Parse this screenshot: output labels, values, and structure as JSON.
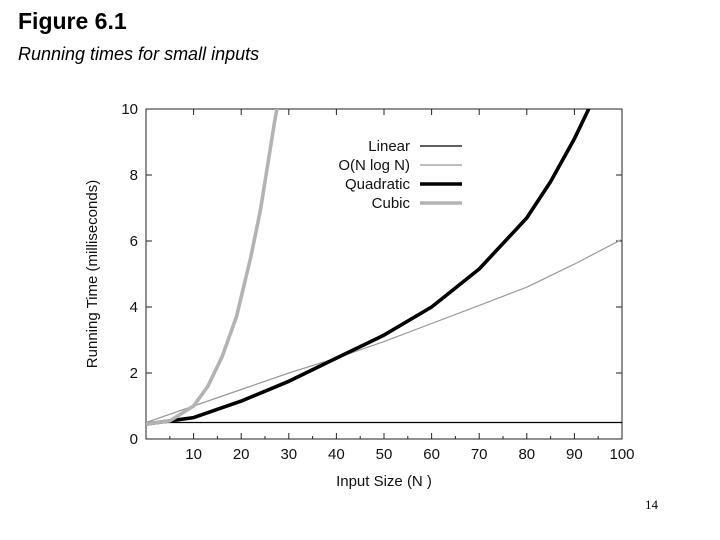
{
  "slide": {
    "title": "Figure 6.1",
    "subtitle": "Running times for small inputs",
    "page_number": "14"
  },
  "chart_data": {
    "type": "line",
    "title": "",
    "xlabel": "Input Size (N )",
    "ylabel": "Running Time (milliseconds)",
    "xlim": [
      0,
      100
    ],
    "ylim": [
      0,
      10
    ],
    "x_ticks": [
      "10",
      "20",
      "30",
      "40",
      "50",
      "60",
      "70",
      "80",
      "90",
      "100"
    ],
    "y_ticks": [
      "0",
      "2",
      "4",
      "6",
      "8",
      "10"
    ],
    "legend_position": "top-right",
    "grid": false,
    "series": [
      {
        "name": "Linear",
        "color": "#000000",
        "width": "thin",
        "x": [
          0,
          100
        ],
        "y": [
          0.5,
          0.5
        ]
      },
      {
        "name": "O(N log N)",
        "color": "#999999",
        "width": "thin",
        "x": [
          0,
          10,
          20,
          30,
          40,
          50,
          60,
          70,
          80,
          90,
          100
        ],
        "y": [
          0.5,
          1.0,
          1.5,
          2.0,
          2.45,
          2.95,
          3.5,
          4.05,
          4.6,
          5.3,
          6.05
        ]
      },
      {
        "name": "Quadratic",
        "color": "#000000",
        "width": "thick",
        "x": [
          0,
          10,
          20,
          30,
          40,
          50,
          60,
          70,
          80,
          85,
          90,
          93
        ],
        "y": [
          0.45,
          0.65,
          1.15,
          1.75,
          2.45,
          3.15,
          4.0,
          5.15,
          6.7,
          7.8,
          9.1,
          10.0
        ]
      },
      {
        "name": "Cubic",
        "color": "#b3b3b3",
        "width": "thick",
        "x": [
          0,
          5,
          10,
          13,
          16,
          19,
          22,
          24,
          25,
          26,
          27,
          27.5
        ],
        "y": [
          0.45,
          0.55,
          1.0,
          1.6,
          2.5,
          3.7,
          5.5,
          6.9,
          7.8,
          8.7,
          9.6,
          10.0
        ]
      }
    ]
  }
}
